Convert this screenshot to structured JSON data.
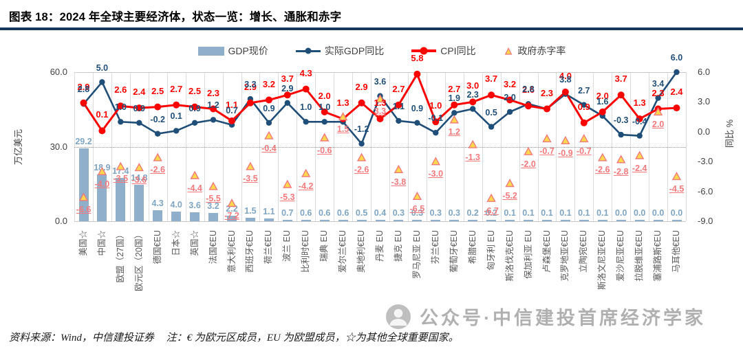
{
  "title": "图表 18：2024 年全球主要经济体，状态一览：增长、通胀和赤字",
  "legend": {
    "bar": "GDP现价",
    "gdp": "实际GDP同比",
    "cpi": "CPI同比",
    "deficit": "政府赤字率"
  },
  "axes": {
    "left_label": "万亿美元",
    "left_ticks": [
      "60.0",
      "30.0",
      "0.0"
    ],
    "left_tick_values": [
      60,
      30,
      0
    ],
    "right_label": "同比 %",
    "right_ticks": [
      "6.0",
      "3.0",
      "0.0",
      "-3.0",
      "-6.0",
      "-9.0"
    ],
    "right_tick_values": [
      6,
      3,
      0,
      -3,
      -6,
      -9
    ]
  },
  "footer": {
    "source": "资料来源：Wind，中信建投证券",
    "note": "注：€ 为欧元区成员，EU 为欧盟成员，☆为其他全球重要国家。"
  },
  "watermark": {
    "text": "公众号·中信建投首席经济学家"
  },
  "colors": {
    "bar": "#8fafca",
    "bar_label": "#7fa5c3",
    "gdp_line": "#1f4e79",
    "cpi_line": "#fe0000",
    "deficit_label": "#f4797c",
    "triangle_fill": "#ffd84d",
    "triangle_stroke": "#f0787a",
    "title_rule": "#17375e"
  },
  "chart_data": {
    "type": "combo (bar + line + line + scatter-triangle)",
    "title": "2024 年全球主要经济体，状态一览：增长、通胀和赤字",
    "legend_position": "top",
    "grid": "vertical category separators + dotted line at left-axis 30",
    "left_axis_range": [
      0,
      60
    ],
    "right_axis_range": [
      -9,
      6
    ],
    "categories": [
      "美国☆",
      "中国☆",
      "欧盟（27国）",
      "欧元区（20国）",
      "德国€EU",
      "日本☆",
      "英国☆",
      "法国€EU",
      "意大利€EU",
      "西班牙€EU",
      "荷兰€EU",
      "波兰 EU",
      "比利时€EU",
      "瑞典 EU",
      "爱尔兰€EU",
      "奥地利€EU",
      "丹麦 EU",
      "捷克 EU",
      "罗马尼亚 EU",
      "芬兰€EU",
      "葡萄牙€EU",
      "希腊€EU",
      "匈牙利 EU",
      "斯洛伐克€EU",
      "保加利亚 EU",
      "卢森堡€EU",
      "克罗地亚€EU",
      "立陶宛€EU",
      "斯洛文尼亚€EU",
      "爱沙尼亚€EU",
      "拉脱维亚€EU",
      "塞浦路斯€EU",
      "马耳他€EU"
    ],
    "series": [
      {
        "name": "GDP现价",
        "type": "bar",
        "axis": "left",
        "unit": "万亿美元",
        "values": [
          29.2,
          18.9,
          17.4,
          14.8,
          4.3,
          4.0,
          3.6,
          3.2,
          2.2,
          1.5,
          1.1,
          0.7,
          0.6,
          0.6,
          0.6,
          0.5,
          0.4,
          0.3,
          0.3,
          0.3,
          0.3,
          0.2,
          0.2,
          0.1,
          0.1,
          0.1,
          0.1,
          0.1,
          0.1,
          0.0,
          0.0,
          0.0,
          0.0
        ]
      },
      {
        "name": "实际GDP同比",
        "type": "line",
        "axis": "right",
        "unit": "%",
        "values": [
          2.8,
          5.0,
          1.0,
          0.9,
          -0.2,
          0.1,
          0.9,
          1.2,
          0.7,
          3.3,
          0.9,
          2.9,
          1.0,
          1.0,
          1.0,
          -1.2,
          3.6,
          1.1,
          0.9,
          -0.1,
          1.9,
          2.3,
          0.5,
          2.0,
          2.8,
          2.3,
          3.8,
          2.7,
          1.6,
          -0.3,
          -0.4,
          3.4,
          6.0
        ]
      },
      {
        "name": "CPI同比",
        "type": "line",
        "axis": "right",
        "unit": "%",
        "values": [
          2.9,
          0.1,
          2.6,
          2.4,
          2.5,
          2.7,
          2.5,
          2.3,
          1.1,
          2.9,
          3.2,
          3.7,
          4.3,
          2.0,
          1.3,
          2.9,
          1.3,
          2.7,
          5.8,
          1.0,
          2.7,
          3.0,
          3.7,
          3.2,
          2.6,
          2.3,
          4.0,
          0.9,
          2.0,
          3.7,
          1.3,
          2.3,
          2.4
        ]
      },
      {
        "name": "政府赤字率",
        "type": "scatter-triangle",
        "axis": "right",
        "unit": "%",
        "values": [
          -6.6,
          -4.0,
          -3.5,
          -3.6,
          -2.6,
          null,
          -4.4,
          -5.5,
          -7.2,
          -3.5,
          -0.4,
          -5.3,
          -4.2,
          -0.6,
          1.5,
          -2.6,
          3.3,
          -3.8,
          -6.5,
          -3.0,
          1.2,
          -1.3,
          -6.7,
          -5.2,
          -2.0,
          -0.7,
          -0.9,
          -0.7,
          -2.6,
          -2.8,
          -2.4,
          2.0,
          -4.5
        ]
      }
    ],
    "gdp_label_hidden": [
      14,
      25
    ],
    "bar_label_overlapped": [
      7
    ]
  }
}
